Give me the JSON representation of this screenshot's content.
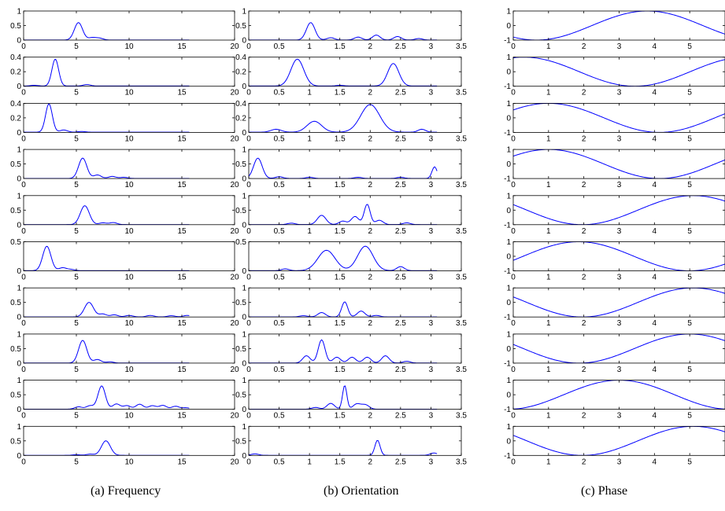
{
  "figure": {
    "captions": [
      "(a) Frequency",
      "(b) Orientation",
      "(c) Phase"
    ],
    "line_color": "#0000ff",
    "axis_color": "#000000"
  },
  "chart_data": [
    {
      "type": "line",
      "column": "Frequency",
      "xlim": [
        0,
        20
      ],
      "xticks": [
        0,
        5,
        10,
        15,
        20
      ],
      "x_range": [
        0,
        15.7
      ],
      "panels": [
        {
          "ylim": [
            0,
            1
          ],
          "yticks": [
            0,
            0.5,
            1
          ],
          "peaks": [
            [
              5.2,
              0.6,
              0.55
            ]
          ],
          "wiggles": [
            [
              6.5,
              0.08
            ],
            [
              7.2,
              0.06
            ]
          ]
        },
        {
          "ylim": [
            0,
            0.4
          ],
          "yticks": [
            0,
            0.2,
            0.4
          ],
          "peaks": [
            [
              3.0,
              0.37,
              0.45
            ]
          ],
          "wiggles": [
            [
              1.0,
              0.01
            ],
            [
              6.0,
              0.02
            ]
          ]
        },
        {
          "ylim": [
            0,
            0.4
          ],
          "yticks": [
            0,
            0.2,
            0.4
          ],
          "peaks": [
            [
              2.4,
              0.39,
              0.45
            ]
          ],
          "wiggles": [
            [
              3.8,
              0.03
            ],
            [
              5.5,
              0.01
            ]
          ]
        },
        {
          "ylim": [
            0,
            1
          ],
          "yticks": [
            0,
            0.5,
            1
          ],
          "peaks": [
            [
              5.6,
              0.7,
              0.55
            ]
          ],
          "wiggles": [
            [
              7.0,
              0.12
            ],
            [
              8.4,
              0.07
            ],
            [
              9.5,
              0.04
            ]
          ]
        },
        {
          "ylim": [
            0,
            1
          ],
          "yticks": [
            0,
            0.5,
            1
          ],
          "peaks": [
            [
              5.8,
              0.65,
              0.6
            ]
          ],
          "wiggles": [
            [
              7.5,
              0.06
            ],
            [
              8.5,
              0.07
            ]
          ]
        },
        {
          "ylim": [
            0,
            0.5
          ],
          "yticks": [
            0,
            0.5
          ],
          "peaks": [
            [
              2.2,
              0.42,
              0.55
            ]
          ],
          "wiggles": [
            [
              3.7,
              0.05
            ],
            [
              4.5,
              0.02
            ]
          ]
        },
        {
          "ylim": [
            0,
            1
          ],
          "yticks": [
            0,
            0.5,
            1
          ],
          "peaks": [
            [
              6.2,
              0.5,
              0.6
            ]
          ],
          "wiggles": [
            [
              7.5,
              0.1
            ],
            [
              8.6,
              0.07
            ],
            [
              10.0,
              0.05
            ],
            [
              12.0,
              0.05
            ],
            [
              14.0,
              0.04
            ],
            [
              15.5,
              0.05
            ]
          ]
        },
        {
          "ylim": [
            0,
            1
          ],
          "yticks": [
            0,
            0.5,
            1
          ],
          "peaks": [
            [
              5.6,
              0.78,
              0.55
            ]
          ],
          "wiggles": [
            [
              7.0,
              0.12
            ],
            [
              8.2,
              0.04
            ]
          ]
        },
        {
          "ylim": [
            0,
            1
          ],
          "yticks": [
            0,
            0.5,
            1
          ],
          "peaks": [
            [
              7.4,
              0.8,
              0.5
            ]
          ],
          "wiggles": [
            [
              5.2,
              0.08
            ],
            [
              6.3,
              0.12
            ],
            [
              8.8,
              0.18
            ],
            [
              9.8,
              0.12
            ],
            [
              11.0,
              0.17
            ],
            [
              12.2,
              0.12
            ],
            [
              13.2,
              0.13
            ],
            [
              14.4,
              0.1
            ],
            [
              15.4,
              0.05
            ]
          ]
        },
        {
          "ylim": [
            0,
            1
          ],
          "yticks": [
            0,
            0.5,
            1
          ],
          "peaks": [
            [
              7.8,
              0.5,
              0.6
            ]
          ],
          "wiggles": [
            [
              5.0,
              0.02
            ],
            [
              6.3,
              0.04
            ]
          ]
        }
      ]
    },
    {
      "type": "line",
      "column": "Orientation",
      "xlim": [
        0,
        3.5
      ],
      "xticks": [
        0,
        0.5,
        1,
        1.5,
        2,
        2.5,
        3,
        3.5
      ],
      "x_range": [
        0,
        3.1
      ],
      "panels": [
        {
          "ylim": [
            0,
            1
          ],
          "yticks": [
            0,
            0.5,
            1
          ],
          "peaks": [
            [
              1.02,
              0.6,
              0.1
            ]
          ],
          "wiggles": [
            [
              1.35,
              0.08
            ],
            [
              1.8,
              0.1
            ],
            [
              2.1,
              0.17
            ],
            [
              2.45,
              0.12
            ],
            [
              2.8,
              0.05
            ]
          ]
        },
        {
          "ylim": [
            0,
            0.4
          ],
          "yticks": [
            0,
            0.2,
            0.4
          ],
          "peaks": [
            [
              0.8,
              0.37,
              0.15
            ],
            [
              2.38,
              0.31,
              0.13
            ]
          ],
          "wiggles": [
            [
              1.5,
              0.01
            ]
          ]
        },
        {
          "ylim": [
            0,
            0.4
          ],
          "yticks": [
            0,
            0.2,
            0.4
          ],
          "peaks": [
            [
              0.45,
              0.04,
              0.12
            ],
            [
              1.08,
              0.15,
              0.17
            ],
            [
              2.0,
              0.38,
              0.22
            ]
          ],
          "wiggles": [
            [
              2.85,
              0.04
            ]
          ]
        },
        {
          "ylim": [
            0,
            1
          ],
          "yticks": [
            0,
            0.5,
            1
          ],
          "peaks": [
            [
              0.15,
              0.7,
              0.1
            ],
            [
              3.06,
              0.4,
              0.06
            ]
          ],
          "wiggles": [
            [
              0.5,
              0.06
            ],
            [
              1.0,
              0.04
            ],
            [
              1.8,
              0.04
            ],
            [
              2.5,
              0.04
            ]
          ]
        },
        {
          "ylim": [
            0,
            1
          ],
          "yticks": [
            0,
            0.5,
            1
          ],
          "peaks": [
            [
              1.2,
              0.32,
              0.1
            ],
            [
              1.95,
              0.7,
              0.07
            ]
          ],
          "wiggles": [
            [
              0.7,
              0.05
            ],
            [
              1.55,
              0.12
            ],
            [
              1.75,
              0.28
            ],
            [
              2.15,
              0.15
            ],
            [
              2.6,
              0.06
            ]
          ]
        },
        {
          "ylim": [
            0,
            0.5
          ],
          "yticks": [
            0,
            0.5
          ],
          "peaks": [
            [
              1.28,
              0.35,
              0.2
            ],
            [
              1.92,
              0.42,
              0.18
            ]
          ],
          "wiggles": [
            [
              0.6,
              0.03
            ],
            [
              2.5,
              0.07
            ]
          ]
        },
        {
          "ylim": [
            0,
            1
          ],
          "yticks": [
            0,
            0.5,
            1
          ],
          "peaks": [
            [
              1.58,
              0.52,
              0.07
            ]
          ],
          "wiggles": [
            [
              1.2,
              0.15
            ],
            [
              1.85,
              0.2
            ],
            [
              2.1,
              0.05
            ],
            [
              0.9,
              0.04
            ]
          ]
        },
        {
          "ylim": [
            0,
            1
          ],
          "yticks": [
            0,
            0.5,
            1
          ],
          "peaks": [
            [
              1.2,
              0.8,
              0.08
            ]
          ],
          "wiggles": [
            [
              0.95,
              0.25
            ],
            [
              1.45,
              0.2
            ],
            [
              1.7,
              0.2
            ],
            [
              1.95,
              0.2
            ],
            [
              2.25,
              0.25
            ],
            [
              2.6,
              0.06
            ]
          ]
        },
        {
          "ylim": [
            0,
            1
          ],
          "yticks": [
            0,
            0.5,
            1
          ],
          "peaks": [
            [
              1.58,
              0.82,
              0.05
            ]
          ],
          "wiggles": [
            [
              1.35,
              0.2
            ],
            [
              1.78,
              0.18
            ],
            [
              1.92,
              0.15
            ],
            [
              1.1,
              0.06
            ]
          ]
        },
        {
          "ylim": [
            0,
            1
          ],
          "yticks": [
            0,
            0.5,
            1
          ],
          "peaks": [
            [
              2.12,
              0.52,
              0.06
            ]
          ],
          "wiggles": [
            [
              0.1,
              0.05
            ],
            [
              3.05,
              0.08
            ]
          ]
        }
      ]
    },
    {
      "type": "line",
      "column": "Phase",
      "xlim": [
        0,
        6
      ],
      "xticks": [
        0,
        1,
        2,
        3,
        4,
        5
      ],
      "x_range": [
        0,
        6.1
      ],
      "panels": [
        {
          "ylim": [
            -1,
            1
          ],
          "yticks": [
            -1,
            0,
            1
          ],
          "sine_peak_x": 3.8
        },
        {
          "ylim": [
            -1,
            1
          ],
          "yticks": [
            -1,
            0,
            1
          ],
          "sine_peak_x": 0.3
        },
        {
          "ylim": [
            -1,
            1
          ],
          "yticks": [
            -1,
            0,
            1
          ],
          "sine_peak_x": 1.0
        },
        {
          "ylim": [
            -1,
            1
          ],
          "yticks": [
            -1,
            0,
            1
          ],
          "sine_peak_x": 1.0
        },
        {
          "ylim": [
            -1,
            1
          ],
          "yticks": [
            -1,
            0,
            1
          ],
          "sine_peak_x": 5.1
        },
        {
          "ylim": [
            -1,
            1
          ],
          "yticks": [
            -1,
            0,
            1
          ],
          "sine_peak_x": 1.85
        },
        {
          "ylim": [
            -1,
            1
          ],
          "yticks": [
            -1,
            0,
            1
          ],
          "sine_peak_x": 5.1
        },
        {
          "ylim": [
            -1,
            1
          ],
          "yticks": [
            -1,
            0,
            1
          ],
          "sine_peak_x": 5.0
        },
        {
          "ylim": [
            -1,
            1
          ],
          "yticks": [
            -1,
            0,
            1
          ],
          "sine_peak_x": 3.0
        },
        {
          "ylim": [
            -1,
            1
          ],
          "yticks": [
            -1,
            0,
            1
          ],
          "sine_peak_x": 5.1
        }
      ]
    }
  ]
}
